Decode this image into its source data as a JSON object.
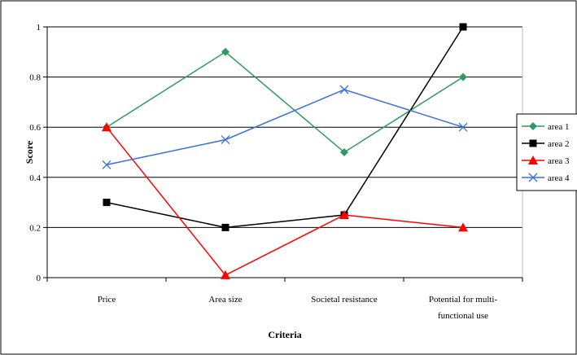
{
  "chart_data": {
    "type": "line",
    "title": "",
    "xlabel": "Criteria",
    "ylabel": "Score",
    "categories": [
      [
        "Price"
      ],
      [
        "Area size"
      ],
      [
        "Societal resistance"
      ],
      [
        "Potential for multi-",
        "functional use"
      ]
    ],
    "ylim": [
      0,
      1
    ],
    "yticks": [
      0,
      0.2,
      0.4,
      0.6,
      0.8,
      1
    ],
    "ytick_labels": [
      "0",
      "0.2",
      "0.4",
      "0.6",
      "0.8",
      "1"
    ],
    "grid": "horizontal",
    "legend": "right",
    "series": [
      {
        "name": "area 1",
        "values": [
          0.6,
          0.9,
          0.5,
          0.8
        ],
        "color": "#2e9b5e",
        "marker": "diamond"
      },
      {
        "name": "area 2",
        "values": [
          0.3,
          0.2,
          0.25,
          1.0
        ],
        "color": "#000000",
        "marker": "square"
      },
      {
        "name": "area 3",
        "values": [
          0.6,
          0.01,
          0.25,
          0.2
        ],
        "color": "#ff0000",
        "marker": "triangle"
      },
      {
        "name": "area 4",
        "values": [
          0.45,
          0.55,
          0.75,
          0.6
        ],
        "color": "#3a6fe0",
        "marker": "x"
      }
    ]
  }
}
